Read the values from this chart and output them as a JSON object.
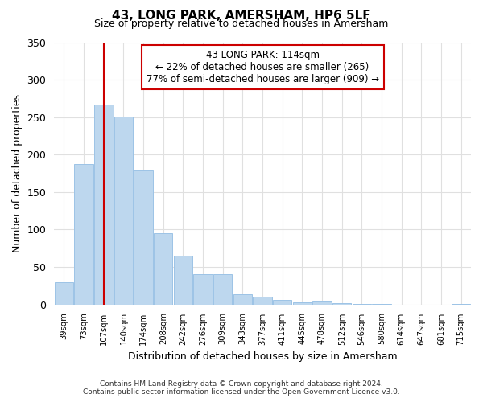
{
  "title": "43, LONG PARK, AMERSHAM, HP6 5LF",
  "subtitle": "Size of property relative to detached houses in Amersham",
  "xlabel": "Distribution of detached houses by size in Amersham",
  "ylabel": "Number of detached properties",
  "categories": [
    "39sqm",
    "73sqm",
    "107sqm",
    "140sqm",
    "174sqm",
    "208sqm",
    "242sqm",
    "276sqm",
    "309sqm",
    "343sqm",
    "377sqm",
    "411sqm",
    "445sqm",
    "478sqm",
    "512sqm",
    "546sqm",
    "580sqm",
    "614sqm",
    "647sqm",
    "681sqm",
    "715sqm"
  ],
  "values": [
    30,
    187,
    267,
    251,
    179,
    95,
    65,
    40,
    40,
    14,
    10,
    6,
    3,
    4,
    2,
    1,
    1,
    0,
    0,
    0,
    1
  ],
  "bar_color": "#bdd7ee",
  "bar_edge_color": "#9dc3e6",
  "property_line_index": 2,
  "vline_color": "#cc0000",
  "annotation_title": "43 LONG PARK: 114sqm",
  "annotation_line1": "← 22% of detached houses are smaller (265)",
  "annotation_line2": "77% of semi-detached houses are larger (909) →",
  "annotation_box_color": "#ffffff",
  "annotation_box_edge": "#cc0000",
  "ylim": [
    0,
    350
  ],
  "yticks": [
    0,
    50,
    100,
    150,
    200,
    250,
    300,
    350
  ],
  "footnote1": "Contains HM Land Registry data © Crown copyright and database right 2024.",
  "footnote2": "Contains public sector information licensed under the Open Government Licence v3.0.",
  "background_color": "#ffffff",
  "grid_color": "#e0e0e0"
}
